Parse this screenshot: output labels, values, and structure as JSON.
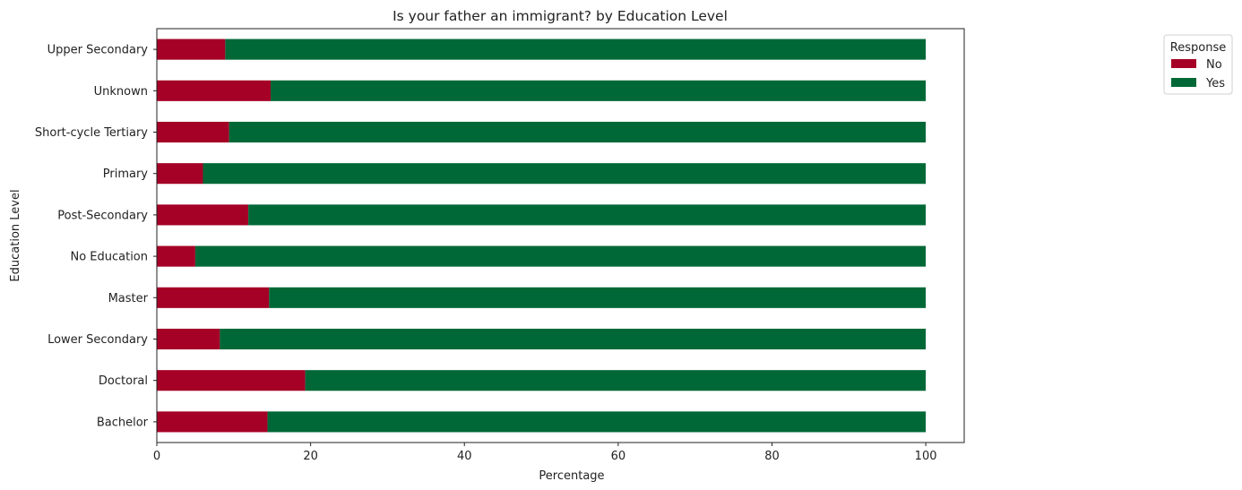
{
  "chart_data": {
    "type": "bar",
    "orientation": "horizontal",
    "stacked": true,
    "title": "Is your father an immigrant? by Education Level",
    "xlabel": "Percentage",
    "ylabel": "Education Level",
    "xlim": [
      0,
      105
    ],
    "xticks": [
      0,
      20,
      40,
      60,
      80,
      100
    ],
    "grid": false,
    "categories": [
      "Bachelor",
      "Doctoral",
      "Lower Secondary",
      "Master",
      "No Education",
      "Post-Secondary",
      "Primary",
      "Short-cycle Tertiary",
      "Unknown",
      "Upper Secondary"
    ],
    "series": [
      {
        "name": "No",
        "color": "#a50026",
        "values": [
          14.4,
          19.3,
          8.2,
          14.6,
          5.0,
          11.9,
          6.0,
          9.4,
          14.8,
          8.9
        ]
      },
      {
        "name": "Yes",
        "color": "#006837",
        "values": [
          85.6,
          80.7,
          91.8,
          85.4,
          95.0,
          88.1,
          94.0,
          90.6,
          85.2,
          91.1
        ]
      }
    ],
    "legend": {
      "title": "Response",
      "placement": "top-right, outside plot"
    }
  }
}
